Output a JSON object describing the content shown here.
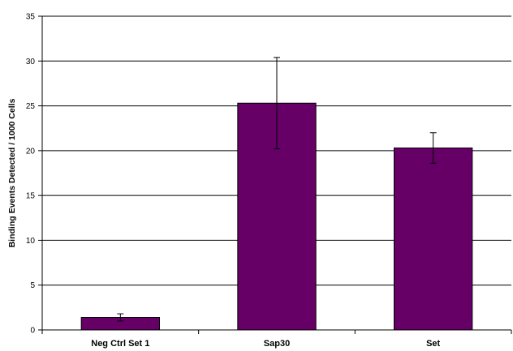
{
  "chart_data": {
    "type": "bar",
    "title": "",
    "xlabel": "",
    "ylabel": "Binding Events Detected / 1000 Cells",
    "categories": [
      "Neg Ctrl Set 1",
      "Sap30",
      "Set"
    ],
    "values": [
      1.4,
      25.3,
      20.3
    ],
    "error_upper": [
      0.4,
      5.1,
      1.7
    ],
    "error_lower": [
      0.4,
      5.1,
      1.7
    ],
    "ylim": [
      0,
      35
    ],
    "yticks": [
      0,
      5,
      10,
      15,
      20,
      25,
      30,
      35
    ],
    "grid": true,
    "legend": "none",
    "bar_color": "#660066",
    "bar_edge_color": "#000000",
    "grid_color": "#000000"
  }
}
